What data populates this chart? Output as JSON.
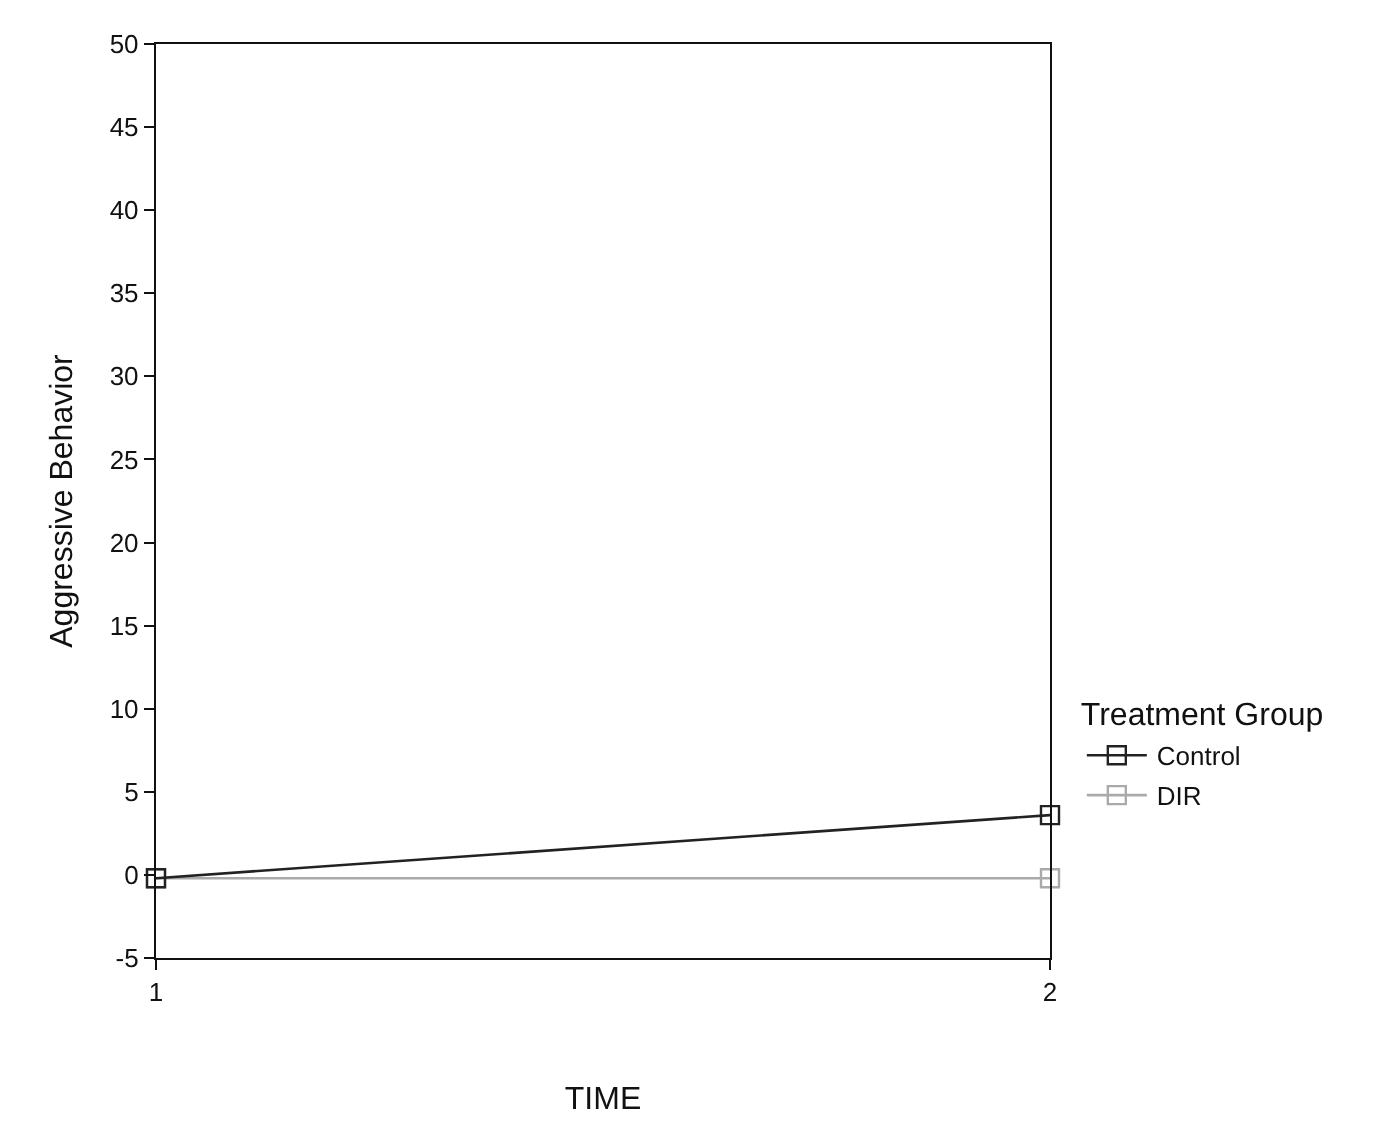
{
  "chart_data": {
    "type": "line",
    "xlabel": "TIME",
    "ylabel": "Aggressive Behavior",
    "legend_title": "Treatment Group",
    "x": [
      1,
      2
    ],
    "series": [
      {
        "name": "Control",
        "color": "#222222",
        "values": [
          -0.2,
          3.6
        ]
      },
      {
        "name": "DIR",
        "color": "#aaaaaa",
        "values": [
          -0.2,
          -0.2
        ]
      }
    ],
    "xlim": [
      1,
      2
    ],
    "xticks": [
      1,
      2
    ],
    "ylim": [
      -5,
      50
    ],
    "yticks": [
      -5,
      0,
      5,
      10,
      15,
      20,
      25,
      30,
      35,
      40,
      45,
      50
    ],
    "grid": false,
    "legend": "right",
    "marker": "square",
    "line_style": "solid"
  }
}
